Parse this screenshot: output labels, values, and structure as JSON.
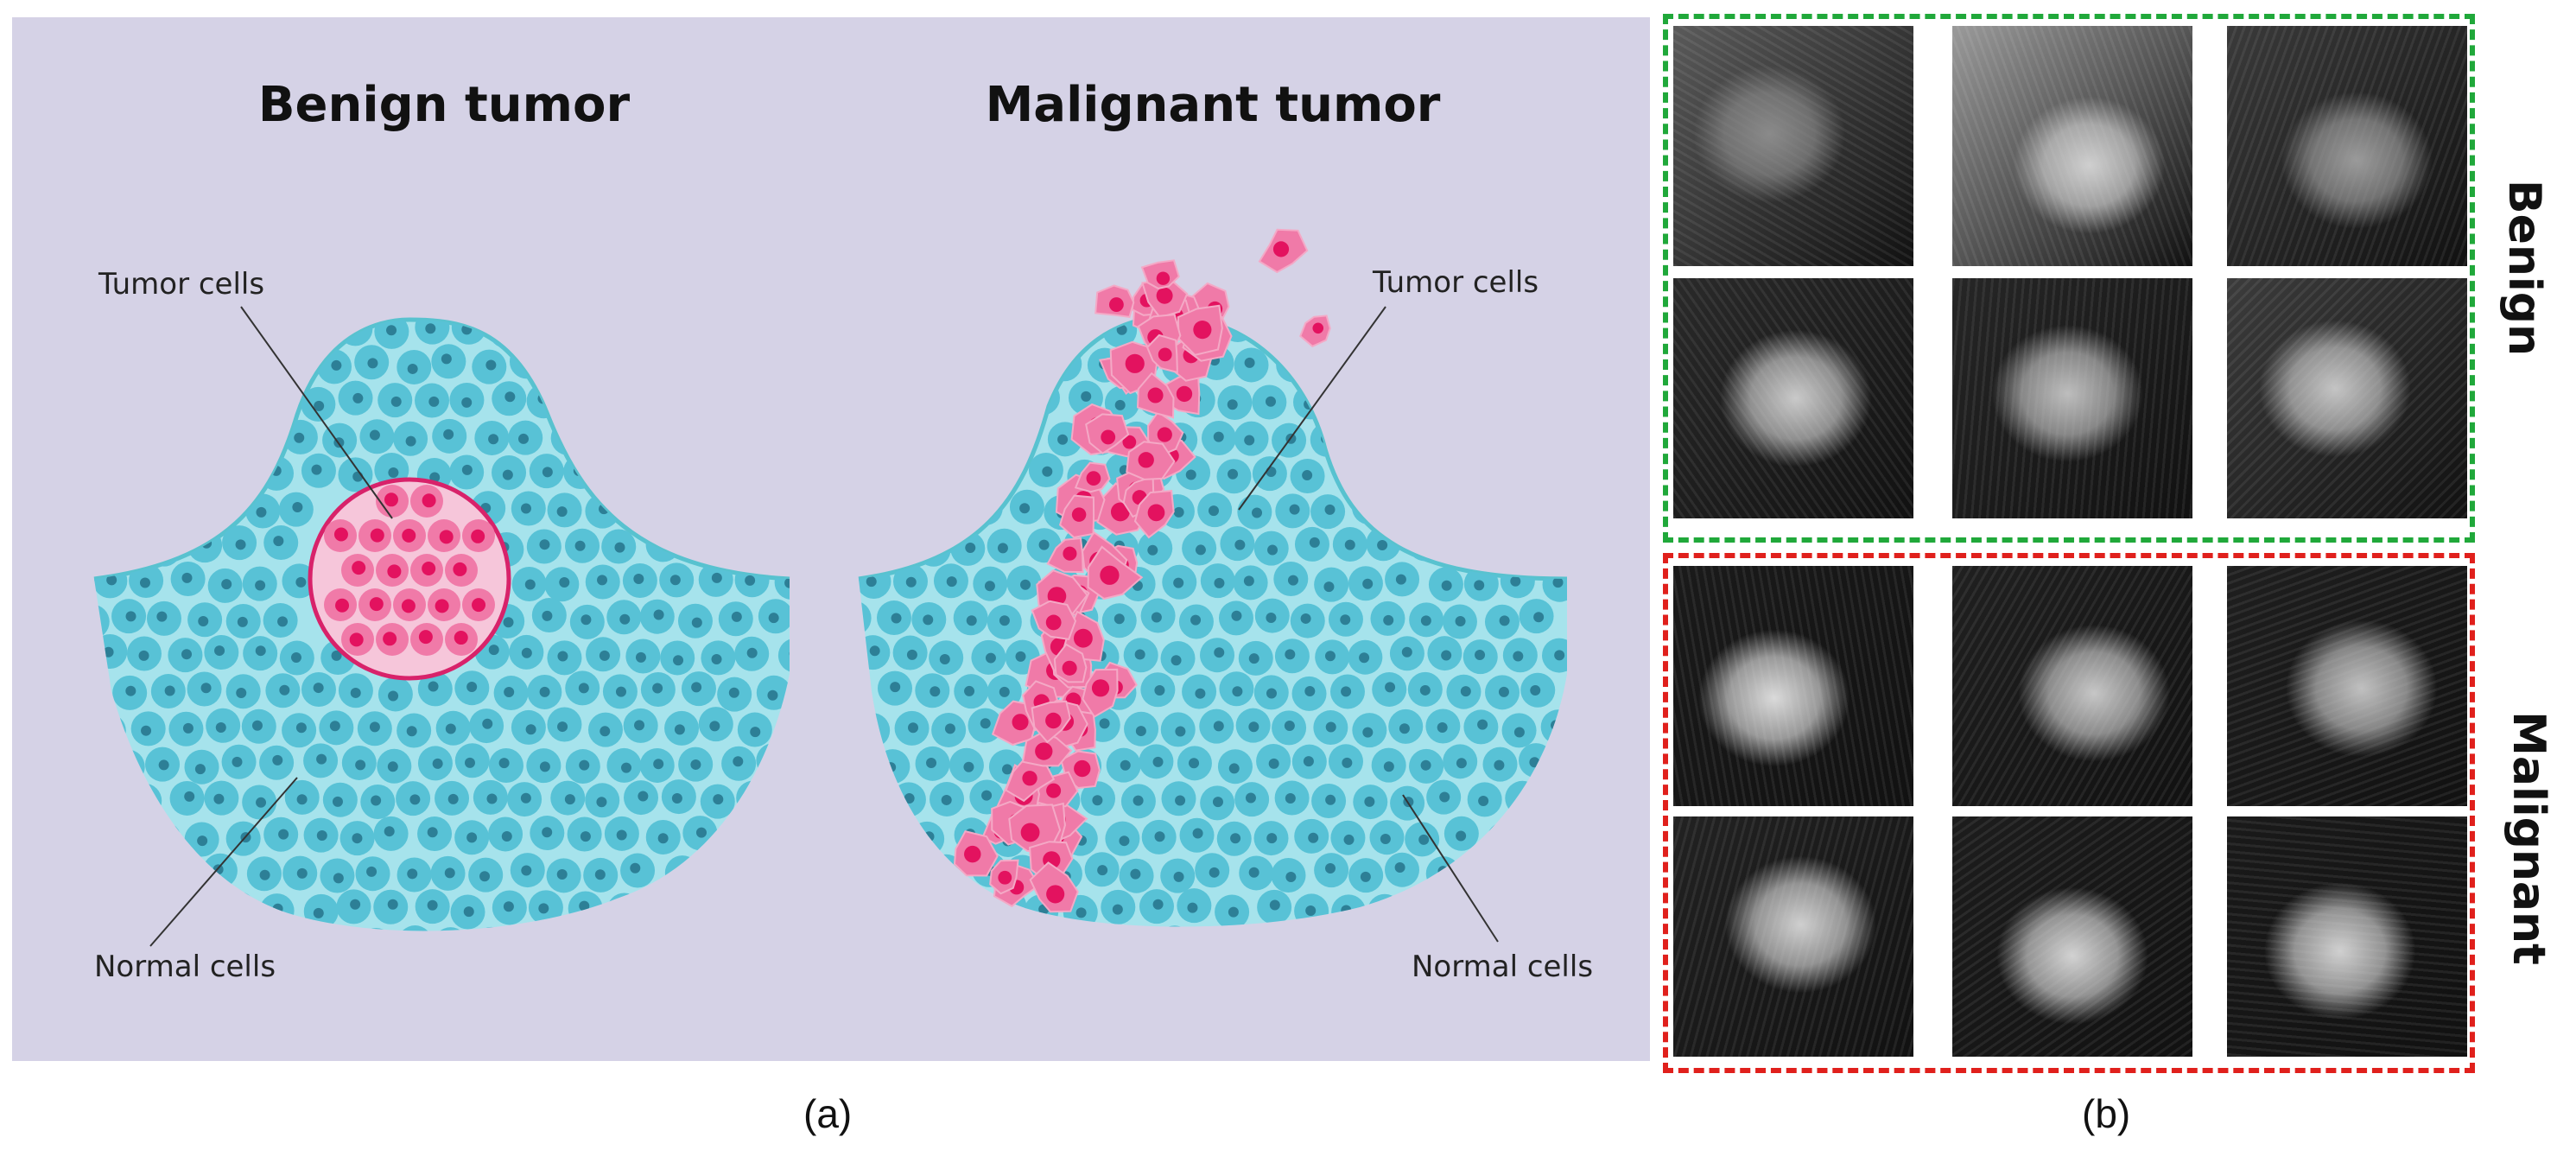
{
  "panel_a": {
    "benign_title": "Benign tumor",
    "malignant_title": "Malignant tumor",
    "benign_tumor_cells_label": "Tumor cells",
    "benign_normal_cells_label": "Normal cells",
    "malignant_tumor_cells_label": "Tumor cells",
    "malignant_normal_cells_label": "Normal cells",
    "caption": "(a)"
  },
  "panel_b": {
    "benign_label": "Benign",
    "malignant_label": "Malignant",
    "caption": "(b)"
  },
  "colors": {
    "background": "#d5d2e6",
    "tissue": "#a6e3ec",
    "tissue_outline": "#58c2cf",
    "normal_cell": "#58c2d6",
    "normal_nucleus": "#2d7f96",
    "tumor_cell": "#f07aa8",
    "tumor_nucleus": "#e3125f",
    "benign_box": "#20a83a",
    "malignant_box": "#e0201c"
  }
}
